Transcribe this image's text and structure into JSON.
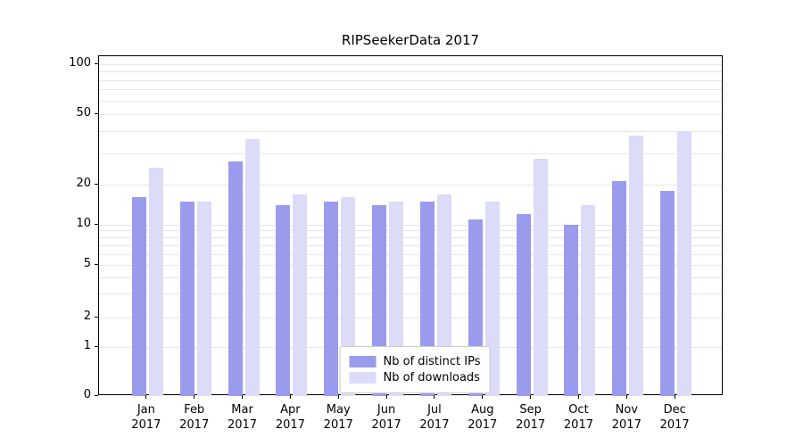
{
  "chart_data": {
    "type": "bar",
    "title": "RIPSeekerData 2017",
    "xlabel": "",
    "ylabel": "",
    "yscale": "symlog (linear 0-1, log above 1)",
    "ylim": [
      0,
      110
    ],
    "grid": true,
    "legend_position": "lower center",
    "categories": [
      "Jan",
      "Feb",
      "Mar",
      "Apr",
      "May",
      "Jun",
      "Jul",
      "Aug",
      "Sep",
      "Oct",
      "Nov",
      "Dec"
    ],
    "category_year": "2017",
    "ytick_values": [
      100,
      50,
      20,
      10,
      5,
      2,
      1,
      0
    ],
    "grid_values": [
      1,
      2,
      3,
      4,
      5,
      6,
      7,
      8,
      9,
      10,
      20,
      30,
      40,
      50,
      60,
      70,
      80,
      90,
      100
    ],
    "series": [
      {
        "name": "Nb of distinct IPs",
        "color": "#9b9bee",
        "values": [
          16,
          15,
          27,
          14,
          15,
          14,
          15,
          11,
          12,
          10,
          21,
          18
        ]
      },
      {
        "name": "Nb of downloads",
        "color": "#dcdcf8",
        "values": [
          25,
          15,
          36,
          17,
          16,
          15,
          17,
          15,
          28,
          14,
          38,
          40
        ]
      }
    ]
  },
  "colors": {
    "grid": "#e7e7e7",
    "spine": "#000000",
    "legend_border": "#cccccc",
    "background": "#ffffff"
  }
}
